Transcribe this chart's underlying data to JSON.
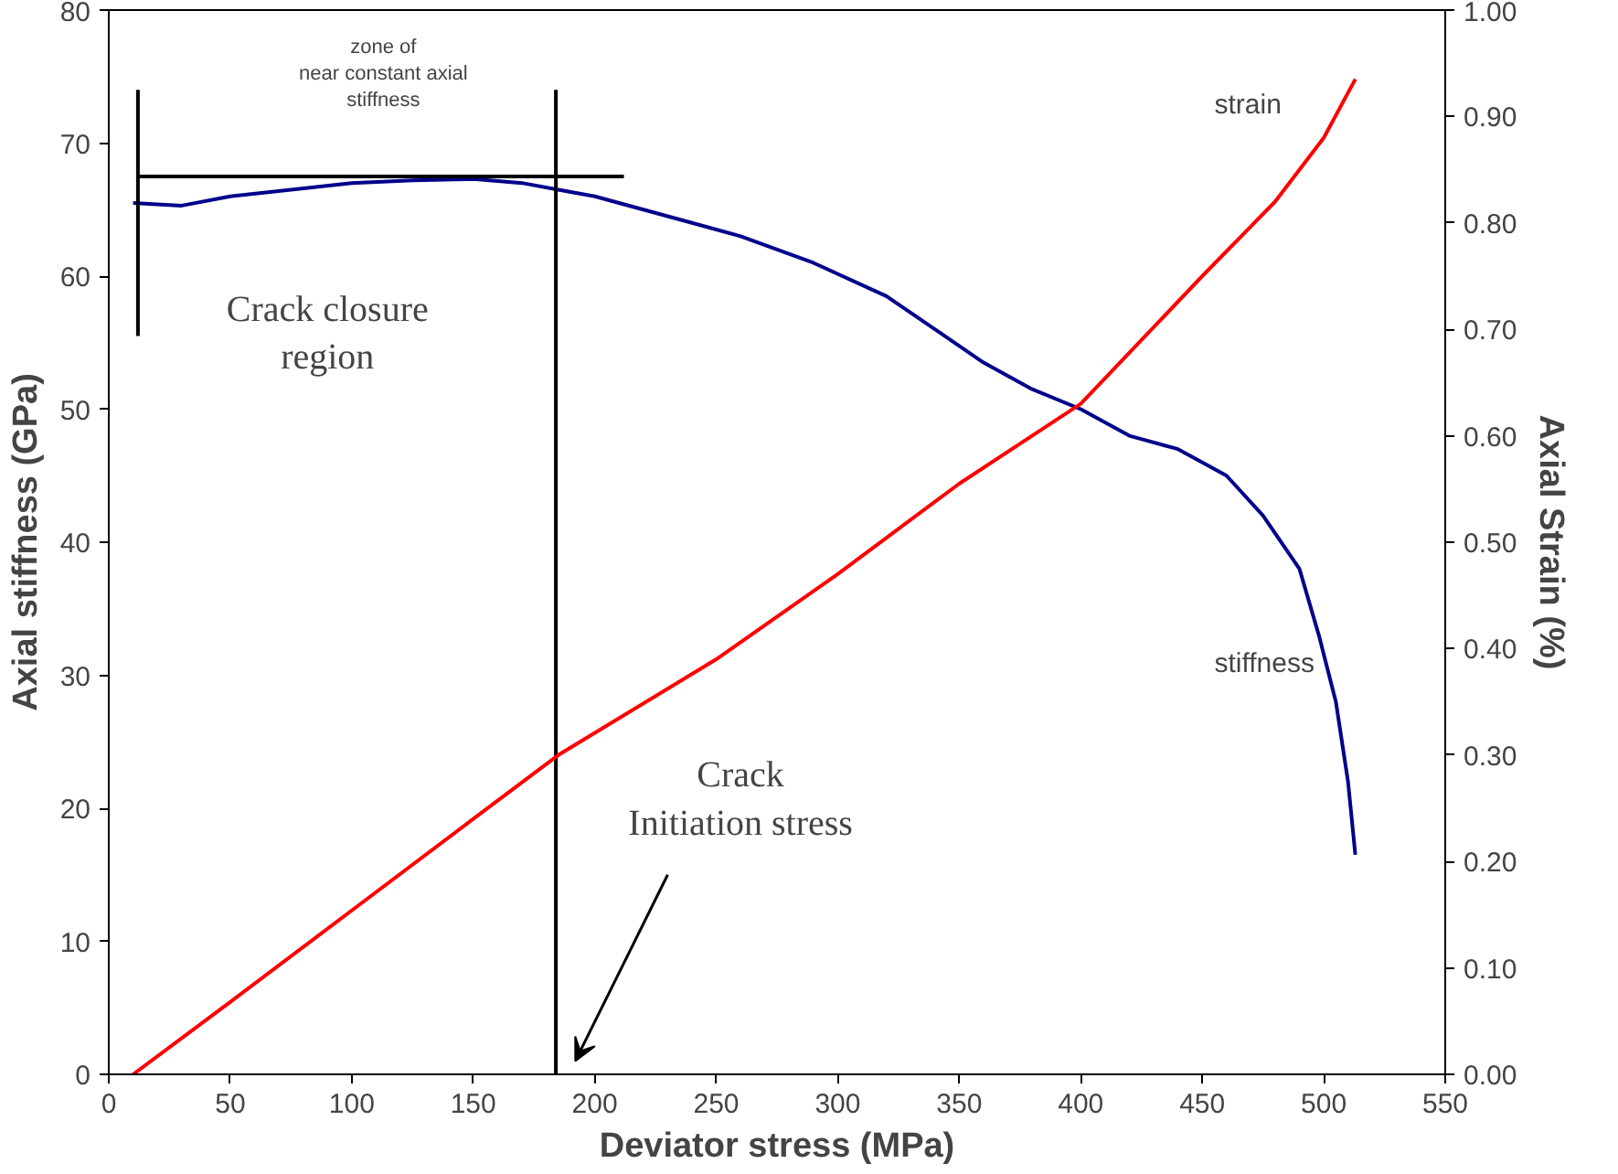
{
  "chart_data": {
    "type": "line",
    "xlabel": "Deviator stress (MPa)",
    "ylabel": "Axial stiffness (GPa)",
    "y2label": "Axial Strain (%)",
    "xlim": [
      0,
      550
    ],
    "xticks": [
      0,
      50,
      100,
      150,
      200,
      250,
      300,
      350,
      400,
      450,
      500,
      550
    ],
    "ylim": [
      0,
      80
    ],
    "yticks": [
      0,
      10,
      20,
      30,
      40,
      50,
      60,
      70,
      80
    ],
    "y2lim": [
      0,
      1
    ],
    "y2ticks": [
      {
        "value": 0,
        "label": "0.00"
      },
      {
        "value": 0.1,
        "label": "0.10"
      },
      {
        "value": 0.2,
        "label": "0.20"
      },
      {
        "value": 0.3,
        "label": "0.30"
      },
      {
        "value": 0.4,
        "label": "0.40"
      },
      {
        "value": 0.5,
        "label": "0.50"
      },
      {
        "value": 0.6,
        "label": "0.60"
      },
      {
        "value": 0.7,
        "label": "0.70"
      },
      {
        "value": 0.8,
        "label": "0.80"
      },
      {
        "value": 0.9,
        "label": "0.90"
      },
      {
        "value": 1,
        "label": "1.00"
      }
    ],
    "grid": false,
    "series": [
      {
        "color": "#00008b",
        "x": [
          10,
          30,
          50,
          75,
          100,
          125,
          150,
          170,
          185,
          200,
          220,
          240,
          260,
          290,
          320,
          340,
          360,
          380,
          400,
          420,
          440,
          460,
          475,
          490,
          498,
          505,
          510,
          513
        ],
        "values": [
          65.5,
          65.3,
          66,
          66.5,
          67,
          67.2,
          67.3,
          67,
          66.5,
          66,
          65,
          64,
          63,
          61,
          58.5,
          56,
          53.5,
          51.5,
          50,
          48,
          47,
          45,
          42,
          38,
          33,
          28,
          22,
          16.5
        ]
      },
      {
        "color": "#000000",
        "x": [
          12,
          212
        ],
        "values": [
          67.5,
          67.5
        ]
      },
      {
        "color": "#000000",
        "x": [
          12,
          12
        ],
        "values": [
          55.5,
          74
        ]
      },
      {
        "color": "#000000",
        "x": [
          184,
          184
        ],
        "values": [
          0,
          74
        ]
      },
      {
        "color": "#ff0000",
        "axis": "y2",
        "x": [
          10,
          50,
          100,
          150,
          185,
          250,
          300,
          350,
          400,
          450,
          480,
          500,
          513
        ],
        "values": [
          0,
          0.068,
          0.154,
          0.24,
          0.3,
          0.39,
          0.47,
          0.555,
          0.63,
          0.75,
          0.82,
          0.88,
          0.935
        ]
      }
    ],
    "annotations": [
      "zone of near constant axial stiffness",
      "Crack closure region",
      "Crack Initiation stress",
      "strain",
      "stiffness"
    ]
  }
}
